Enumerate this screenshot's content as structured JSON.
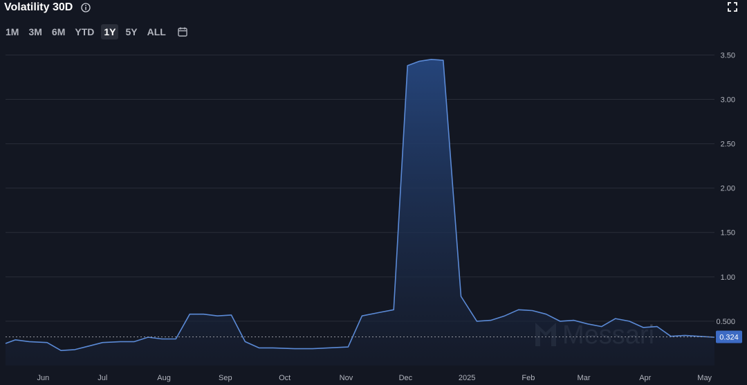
{
  "header": {
    "title": "Volatility 30D",
    "info_icon": "info-icon",
    "expand_icon": "expand-icon"
  },
  "range_buttons": [
    "1M",
    "3M",
    "6M",
    "YTD",
    "1Y",
    "5Y",
    "ALL"
  ],
  "active_range": "1Y",
  "calendar_icon": "calendar-icon",
  "watermark": {
    "text": "Messari"
  },
  "colors": {
    "background": "#131722",
    "line": "#5b8ad6",
    "fill_top": "#26477f",
    "fill_bottom": "#161d2e",
    "grid": "#2a2e39",
    "badge": "#3d6bc4"
  },
  "chart_data": {
    "type": "area",
    "title": "Volatility 30D",
    "y_ticks": [
      "0.500",
      "1.00",
      "1.50",
      "2.00",
      "2.50",
      "3.00",
      "3.50"
    ],
    "y_tick_values": [
      0.5,
      1.0,
      1.5,
      2.0,
      2.5,
      3.0,
      3.5
    ],
    "ylim": [
      -0.0,
      3.55
    ],
    "x_ticks": [
      {
        "label": "Jun",
        "date": "2024-06-01"
      },
      {
        "label": "Jul",
        "date": "2024-07-01"
      },
      {
        "label": "Aug",
        "date": "2024-08-01"
      },
      {
        "label": "Sep",
        "date": "2024-09-01"
      },
      {
        "label": "Oct",
        "date": "2024-10-01"
      },
      {
        "label": "Nov",
        "date": "2024-11-01"
      },
      {
        "label": "Dec",
        "date": "2024-12-01"
      },
      {
        "label": "2025",
        "date": "2025-01-01"
      },
      {
        "label": "Feb",
        "date": "2025-02-01"
      },
      {
        "label": "Mar",
        "date": "2025-03-01"
      },
      {
        "label": "Apr",
        "date": "2025-04-01"
      },
      {
        "label": "May",
        "date": "2025-05-01"
      }
    ],
    "xlim": [
      "2024-05-13",
      "2025-05-06"
    ],
    "current_value": 0.324,
    "current_label": "0.324",
    "grid": true,
    "series": [
      {
        "points": [
          [
            "2024-05-13",
            0.25
          ],
          [
            "2024-05-18",
            0.29
          ],
          [
            "2024-05-25",
            0.27
          ],
          [
            "2024-06-03",
            0.26
          ],
          [
            "2024-06-10",
            0.17
          ],
          [
            "2024-06-17",
            0.18
          ],
          [
            "2024-06-24",
            0.22
          ],
          [
            "2024-07-01",
            0.26
          ],
          [
            "2024-07-10",
            0.27
          ],
          [
            "2024-07-17",
            0.27
          ],
          [
            "2024-07-24",
            0.32
          ],
          [
            "2024-07-31",
            0.3
          ],
          [
            "2024-08-07",
            0.3
          ],
          [
            "2024-08-14",
            0.58
          ],
          [
            "2024-08-21",
            0.58
          ],
          [
            "2024-08-28",
            0.56
          ],
          [
            "2024-09-04",
            0.57
          ],
          [
            "2024-09-11",
            0.27
          ],
          [
            "2024-09-18",
            0.2
          ],
          [
            "2024-09-25",
            0.2
          ],
          [
            "2024-10-06",
            0.19
          ],
          [
            "2024-10-15",
            0.19
          ],
          [
            "2024-10-23",
            0.2
          ],
          [
            "2024-11-02",
            0.21
          ],
          [
            "2024-11-09",
            0.56
          ],
          [
            "2024-11-18",
            0.6
          ],
          [
            "2024-11-25",
            0.63
          ],
          [
            "2024-12-02",
            3.38
          ],
          [
            "2024-12-08",
            3.43
          ],
          [
            "2024-12-14",
            3.45
          ],
          [
            "2024-12-20",
            3.44
          ],
          [
            "2024-12-29",
            0.78
          ],
          [
            "2025-01-06",
            0.5
          ],
          [
            "2025-01-13",
            0.51
          ],
          [
            "2025-01-20",
            0.56
          ],
          [
            "2025-01-27",
            0.63
          ],
          [
            "2025-02-03",
            0.62
          ],
          [
            "2025-02-10",
            0.58
          ],
          [
            "2025-02-17",
            0.5
          ],
          [
            "2025-02-24",
            0.51
          ],
          [
            "2025-03-03",
            0.47
          ],
          [
            "2025-03-10",
            0.44
          ],
          [
            "2025-03-17",
            0.53
          ],
          [
            "2025-03-24",
            0.5
          ],
          [
            "2025-03-31",
            0.43
          ],
          [
            "2025-04-07",
            0.44
          ],
          [
            "2025-04-14",
            0.33
          ],
          [
            "2025-04-21",
            0.34
          ],
          [
            "2025-04-28",
            0.33
          ],
          [
            "2025-05-06",
            0.32
          ]
        ]
      }
    ]
  }
}
